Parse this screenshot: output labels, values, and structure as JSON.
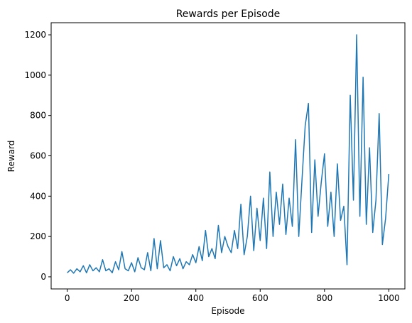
{
  "chart_data": {
    "type": "line",
    "title": "Rewards per Episode",
    "xlabel": "Episode",
    "ylabel": "Reward",
    "xlim": [
      -50,
      1050
    ],
    "ylim": [
      -60,
      1260
    ],
    "xticks": [
      0,
      200,
      400,
      600,
      800,
      1000
    ],
    "yticks": [
      0,
      200,
      400,
      600,
      800,
      1000,
      1200
    ],
    "grid": false,
    "line_color": "#1f77b4",
    "series": [
      {
        "x": [
          0,
          10,
          20,
          30,
          40,
          50,
          60,
          70,
          80,
          90,
          100,
          110,
          120,
          130,
          140,
          150,
          160,
          170,
          180,
          190,
          200,
          210,
          220,
          230,
          240,
          250,
          260,
          270,
          280,
          290,
          300,
          310,
          320,
          330,
          340,
          350,
          360,
          370,
          380,
          390,
          400,
          410,
          420,
          430,
          440,
          450,
          460,
          470,
          480,
          490,
          500,
          510,
          520,
          530,
          540,
          550,
          560,
          570,
          580,
          590,
          600,
          610,
          620,
          630,
          640,
          650,
          660,
          670,
          680,
          690,
          700,
          710,
          720,
          730,
          740,
          750,
          760,
          770,
          780,
          790,
          800,
          810,
          820,
          830,
          840,
          850,
          860,
          870,
          880,
          890,
          900,
          910,
          920,
          930,
          940,
          950,
          960,
          970,
          980,
          990,
          1000
        ],
        "values": [
          20,
          35,
          18,
          40,
          25,
          55,
          20,
          60,
          30,
          45,
          25,
          85,
          30,
          40,
          20,
          75,
          35,
          125,
          40,
          30,
          70,
          25,
          95,
          45,
          35,
          120,
          30,
          190,
          40,
          180,
          45,
          60,
          30,
          100,
          55,
          90,
          40,
          75,
          60,
          110,
          70,
          150,
          80,
          230,
          100,
          140,
          90,
          255,
          120,
          200,
          150,
          120,
          230,
          140,
          360,
          110,
          200,
          400,
          130,
          340,
          180,
          390,
          140,
          520,
          200,
          420,
          260,
          460,
          210,
          390,
          250,
          680,
          200,
          480,
          750,
          860,
          220,
          580,
          300,
          470,
          610,
          250,
          420,
          200,
          560,
          280,
          350,
          60,
          900,
          380,
          1200,
          300,
          990,
          260,
          640,
          220,
          380,
          810,
          160,
          290,
          510
        ]
      }
    ]
  }
}
